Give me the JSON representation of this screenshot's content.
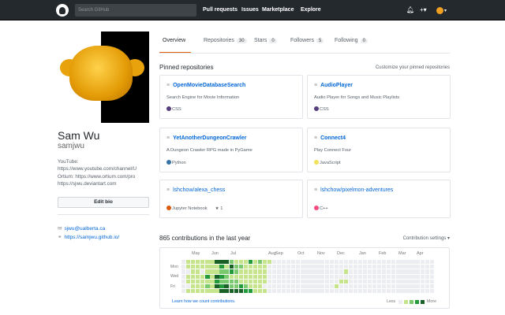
{
  "header": {
    "search_placeholder": "Search GitHub",
    "nav": [
      "Pull requests",
      "Issues",
      "Marketplace",
      "Explore"
    ],
    "plus": "+▾",
    "avatar_caret": "▾"
  },
  "profile": {
    "name": "Sam Wu",
    "login": "samjwu",
    "bio": [
      "YouTube:",
      "https://www.youtube.com/channel/U",
      "Ortium: https://www.ortium.com/pro",
      "https://sjwu.deviantart.com"
    ],
    "edit_label": "Edit bio",
    "email": "sjwu@ualberta.ca",
    "website": "https://samjwu.github.io/"
  },
  "tabs": [
    {
      "label": "Overview"
    },
    {
      "label": "Repositories",
      "count": "30"
    },
    {
      "label": "Stars",
      "count": "0"
    },
    {
      "label": "Followers",
      "count": "5"
    },
    {
      "label": "Following",
      "count": "0"
    }
  ],
  "pinned": {
    "title": "Pinned repositories",
    "customize": "Customize your pinned repositories",
    "repos": [
      {
        "name": "OpenMovieDatabaseSearch",
        "desc": "Search Engine for Movie Information",
        "lang": "CSS",
        "color": "#563d7c",
        "fork": false
      },
      {
        "name": "AudioPlayer",
        "desc": "Audio Player for Songs and Music Playlists",
        "lang": "CSS",
        "color": "#563d7c",
        "fork": false
      },
      {
        "name": "YetAnotherDungeonCrawler",
        "desc": "A Dungeon Crawler RPG made in PyGame",
        "lang": "Python",
        "color": "#3572A5",
        "fork": false
      },
      {
        "name": "Connect4",
        "desc": "Play Connect Four",
        "lang": "JavaScript",
        "color": "#f1e05a",
        "fork": false
      },
      {
        "name": "lshchow/alexa_chess",
        "desc": "",
        "lang": "Jupyter Notebook",
        "color": "#DA5B0B",
        "stars": "1",
        "fork": true
      },
      {
        "name": "lshchow/pixelmon-adventures",
        "desc": "",
        "lang": "C++",
        "color": "#f34b7d",
        "fork": true
      }
    ]
  },
  "contrib": {
    "title": "865 contributions in the last year",
    "settings": "Contribution settings ▾",
    "months": [
      "May",
      "Jun",
      "Jul",
      "Aug",
      "Sep",
      "Oct",
      "Nov",
      "Dec",
      "Jan",
      "Feb",
      "Mar",
      "Apr"
    ],
    "days": [
      "Mon",
      "Wed",
      "Fri"
    ],
    "learn": "Learn how we count contributions.",
    "less": "Less",
    "more": "More",
    "colors": [
      "#ebedf0",
      "#c6e48b",
      "#7bc96f",
      "#239a3b",
      "#196127"
    ],
    "weeks": [
      "0000000",
      "1101101",
      "1111111",
      "1111111",
      "1101111",
      "1113121",
      "1111111",
      "4114341",
      "4323234",
      "4122244",
      "2431224",
      "1221224",
      "1211134",
      "1111123",
      "3111113",
      "1111111",
      "2111111",
      "1111101",
      "1000000",
      "0000000",
      "0000000",
      "0000000",
      "0000000",
      "0000000",
      "0000000",
      "0000000",
      "0000000",
      "0000000",
      "0000000",
      "0000000",
      "0000000",
      "0000000",
      "0000010",
      "0000100",
      "0010100",
      "0000000",
      "0000000",
      "0000000",
      "0000000",
      "0000000",
      "0000000",
      "0000000",
      "0000000",
      "0000000",
      "0000000",
      "0000000",
      "0000000",
      "0000000",
      "0000000",
      "0000000",
      "0000000",
      "0000000",
      "0000000"
    ]
  }
}
